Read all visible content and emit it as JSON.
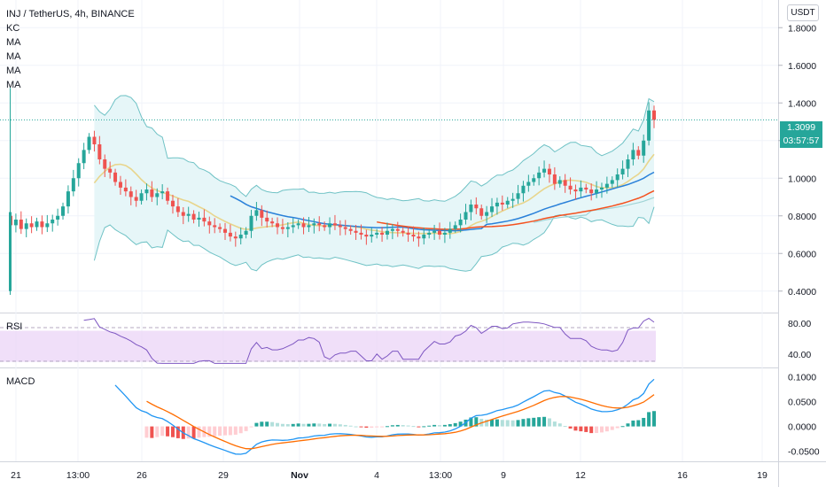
{
  "header": {
    "title": "INJ / TetherUS, 4h, BINANCE",
    "indicators": [
      "KC",
      "MA",
      "MA",
      "MA",
      "MA"
    ],
    "currency": "USDT",
    "last_price": "1.3099",
    "countdown": "03:57:57"
  },
  "rsi_pane": {
    "label": "RSI",
    "ticks": [
      "80.00",
      "40.00"
    ],
    "band_color": "#e9d2f7",
    "line_color": "#7e57c2"
  },
  "macd_pane": {
    "label": "MACD",
    "ticks": [
      "0.1000",
      "0.0500",
      "0.0000",
      "-0.0500"
    ],
    "macd_color": "#2196f3",
    "signal_color": "#ff6d00"
  },
  "x_axis": {
    "labels": [
      "21",
      "13:00",
      "26",
      "29",
      "Nov",
      "4",
      "13:00",
      "9",
      "12",
      "16",
      "19"
    ]
  },
  "colors": {
    "up": "#26a69a",
    "down": "#ef5350",
    "kc": "#6fc2c5",
    "kc_fill": "#e3f5f7",
    "ma_fast": "#e8d58c",
    "ma_mid": "#2980d9",
    "ma_slow": "#f4511e",
    "ma_long": "#a0d4d6",
    "price_line": "#26a69a"
  },
  "chart_data": [
    {
      "type": "line",
      "title": "INJ / TetherUS, 4h, BINANCE",
      "ylim": [
        0.3,
        1.9
      ],
      "y_ticks": [
        0.4,
        0.6,
        0.8,
        1.0,
        1.2,
        1.4,
        1.6,
        1.8
      ],
      "x_tick_labels": [
        "21",
        "13:00",
        "26",
        "29",
        "Nov",
        "4",
        "13:00",
        "9",
        "12",
        "16",
        "19"
      ],
      "close_series": [
        0.75,
        0.78,
        0.73,
        0.76,
        0.74,
        0.77,
        0.74,
        0.76,
        0.78,
        0.8,
        0.85,
        0.93,
        1.0,
        1.08,
        1.15,
        1.22,
        1.18,
        1.1,
        1.05,
        1.03,
        0.98,
        0.95,
        0.93,
        0.9,
        0.88,
        0.92,
        0.94,
        0.9,
        0.92,
        0.93,
        0.88,
        0.85,
        0.82,
        0.8,
        0.81,
        0.78,
        0.79,
        0.77,
        0.75,
        0.74,
        0.73,
        0.71,
        0.69,
        0.68,
        0.7,
        0.72,
        0.8,
        0.83,
        0.79,
        0.77,
        0.76,
        0.74,
        0.73,
        0.74,
        0.75,
        0.76,
        0.74,
        0.75,
        0.76,
        0.75,
        0.74,
        0.76,
        0.75,
        0.74,
        0.73,
        0.72,
        0.71,
        0.7,
        0.69,
        0.7,
        0.71,
        0.7,
        0.72,
        0.73,
        0.72,
        0.71,
        0.7,
        0.69,
        0.68,
        0.7,
        0.71,
        0.72,
        0.7,
        0.71,
        0.73,
        0.75,
        0.78,
        0.82,
        0.86,
        0.84,
        0.8,
        0.82,
        0.85,
        0.87,
        0.86,
        0.88,
        0.89,
        0.92,
        0.96,
        0.98,
        1.0,
        1.03,
        1.05,
        1.02,
        0.97,
        0.99,
        0.96,
        0.94,
        0.93,
        0.95,
        0.94,
        0.92,
        0.94,
        0.95,
        0.97,
        0.99,
        1.02,
        1.05,
        1.1,
        1.15,
        1.12,
        1.2,
        1.36,
        1.31
      ],
      "keltner_upper_range": [
        1.27,
        0.9
      ],
      "keltner_lower_range": [
        0.47,
        0.63
      ],
      "ma_series": [
        "MA",
        "MA",
        "MA",
        "MA"
      ]
    },
    {
      "type": "line",
      "title": "RSI",
      "ylim": [
        25,
        90
      ],
      "y_ticks": [
        80,
        40
      ],
      "band": [
        70,
        30
      ]
    },
    {
      "type": "bar",
      "title": "MACD",
      "ylim": [
        -0.065,
        0.11
      ],
      "y_ticks": [
        0.1,
        0.05,
        0.0,
        -0.05
      ],
      "series": [
        {
          "name": "MACD"
        },
        {
          "name": "Signal"
        },
        {
          "name": "Histogram"
        }
      ]
    }
  ]
}
